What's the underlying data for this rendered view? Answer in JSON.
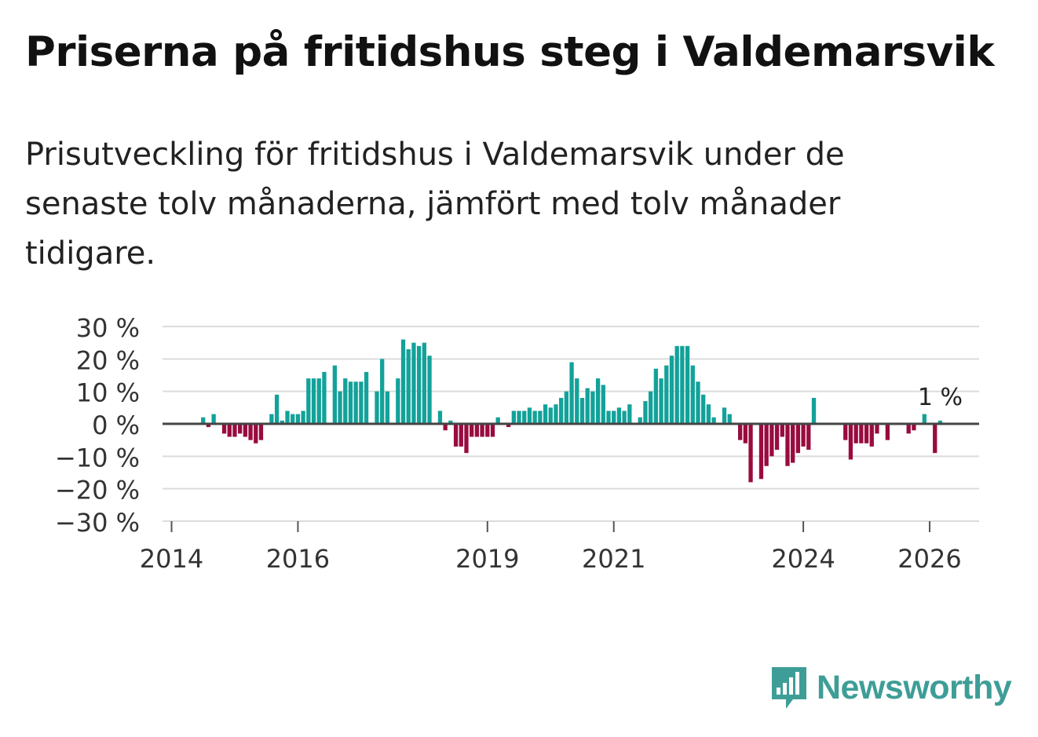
{
  "title": "Priserna på fritidshus steg i Valdemarsvik",
  "subtitle": "Prisutveckling för fritidshus i Valdemarsvik under de senaste tolv månaderna, jämfört med tolv månader tidigare.",
  "brand": {
    "name": "Newsworthy",
    "icon": "newsworthy-logo-icon"
  },
  "colors": {
    "positive": "#12a29a",
    "negative": "#990b3f",
    "grid": "#dcdcdc",
    "zero_line": "#444444",
    "text": "#333333",
    "brand": "#3e9e97"
  },
  "chart_data": {
    "type": "bar",
    "title": "Priserna på fritidshus steg i Valdemarsvik",
    "xlabel": "",
    "ylabel": "",
    "unit": "%",
    "start": "2014-01",
    "ylim": [
      -30,
      30
    ],
    "y_ticks": [
      30,
      20,
      10,
      0,
      -10,
      -20,
      -30
    ],
    "y_tick_labels": [
      "30 %",
      "20 %",
      "10 %",
      "0 %",
      "−10 %",
      "−20 %",
      "−30 %"
    ],
    "x_ticks": [
      {
        "label": "2014",
        "month_index": 0
      },
      {
        "label": "2016",
        "month_index": 24
      },
      {
        "label": "2019",
        "month_index": 60
      },
      {
        "label": "2021",
        "month_index": 84
      },
      {
        "label": "2024",
        "month_index": 120
      },
      {
        "label": "2026",
        "month_index": 144
      }
    ],
    "last_value_label": "1 %",
    "values": [
      null,
      null,
      null,
      null,
      null,
      null,
      2,
      -1,
      3,
      null,
      -3,
      -4,
      -4,
      -3,
      -4,
      -5,
      -6,
      -5,
      null,
      3,
      9,
      1,
      4,
      3,
      3,
      4,
      14,
      14,
      14,
      16,
      null,
      18,
      10,
      14,
      13,
      13,
      13,
      16,
      null,
      10,
      20,
      10,
      null,
      14,
      26,
      23,
      25,
      24,
      25,
      21,
      null,
      4,
      -2,
      1,
      -7,
      -7,
      -9,
      -4,
      -4,
      -4,
      -4,
      -4,
      2,
      null,
      -1,
      4,
      4,
      4,
      5,
      4,
      4,
      6,
      5,
      6,
      8,
      10,
      19,
      14,
      8,
      11,
      10,
      14,
      12,
      4,
      4,
      5,
      4,
      6,
      null,
      2,
      7,
      10,
      17,
      14,
      18,
      21,
      24,
      24,
      24,
      18,
      13,
      9,
      6,
      2,
      null,
      5,
      3,
      null,
      -5,
      -6,
      -18,
      null,
      -17,
      -13,
      -10,
      -8,
      -4,
      -13,
      -12,
      -9,
      -7,
      -8,
      8,
      null,
      null,
      null,
      null,
      null,
      -5,
      -11,
      -6,
      -6,
      -6,
      -7,
      -3,
      null,
      -5,
      null,
      null,
      null,
      -3,
      -2,
      null,
      3,
      null,
      -9,
      1
    ]
  }
}
